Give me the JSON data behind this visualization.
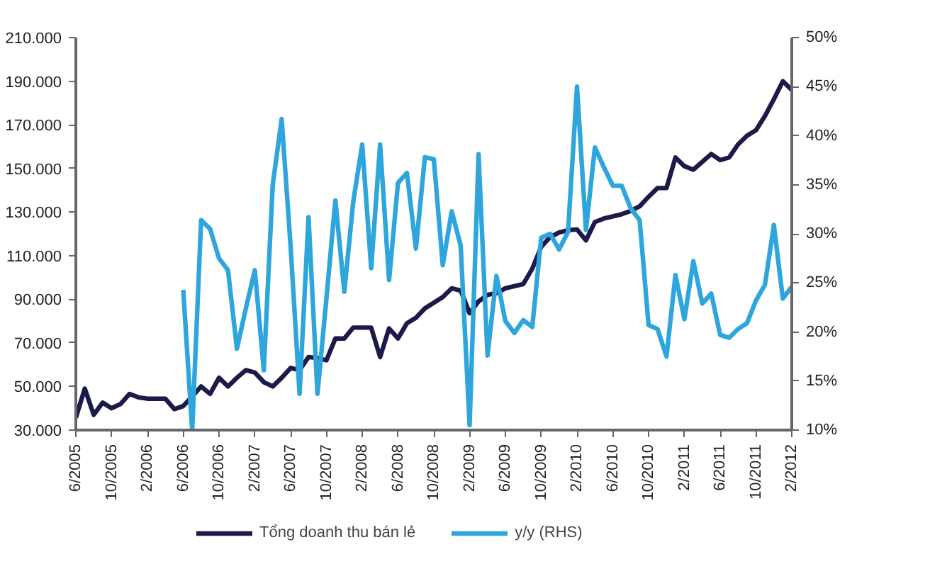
{
  "chart_data": {
    "type": "line",
    "categories": [
      "6/2005",
      null,
      null,
      null,
      "10/2005",
      null,
      null,
      null,
      "2/2006",
      null,
      null,
      null,
      "6/2006",
      null,
      null,
      null,
      "10/2006",
      null,
      null,
      null,
      "2/2007",
      null,
      null,
      null,
      "6/2007",
      null,
      null,
      null,
      "10/2007",
      null,
      null,
      null,
      "2/2008",
      null,
      null,
      null,
      "6/2008",
      null,
      null,
      null,
      "10/2008",
      null,
      null,
      null,
      "2/2009",
      null,
      null,
      null,
      "6/2009",
      null,
      null,
      null,
      "10/2009",
      null,
      null,
      null,
      "2/2010",
      null,
      null,
      null,
      "6/2010",
      null,
      null,
      null,
      "10/2010",
      null,
      null,
      null,
      "2/2011",
      null,
      null,
      null,
      "6/2011",
      null,
      null,
      null,
      "10/2011",
      null,
      null,
      null,
      "2/2012"
    ],
    "series": [
      {
        "name": "Tổng doanh thu bán lẻ",
        "color": "#1b1a4a",
        "values": [
          35700,
          49000,
          37000,
          42600,
          40000,
          42000,
          46600,
          45000,
          44400,
          44400,
          44400,
          39600,
          41000,
          45500,
          50000,
          46600,
          54000,
          50000,
          54000,
          57500,
          56400,
          52000,
          50000,
          54000,
          58500,
          57500,
          63500,
          63000,
          62000,
          72000,
          72000,
          77000,
          77000,
          77000,
          63500,
          76600,
          72000,
          79000,
          81500,
          85800,
          88400,
          91000,
          95000,
          94000,
          83600,
          89000,
          92000,
          92800,
          95000,
          96000,
          97000,
          104000,
          114000,
          118500,
          120600,
          121700,
          122000,
          117000,
          125400,
          127000,
          128000,
          129000,
          130500,
          132600,
          137000,
          141000,
          141000,
          155000,
          151000,
          149400,
          153000,
          156600,
          153800,
          155000,
          161000,
          165000,
          167500,
          174000,
          181700,
          190000,
          186000
        ]
      },
      {
        "name": "y/y (RHS)",
        "color": "#2ea6dc",
        "axis": "y2",
        "values": [
          null,
          null,
          null,
          null,
          null,
          null,
          null,
          null,
          null,
          null,
          null,
          null,
          24.3,
          10,
          31.4,
          30.5,
          27.5,
          26.3,
          18.3,
          22.4,
          26.3,
          16.1,
          35,
          41.7,
          28.7,
          13.7,
          31.7,
          13.7,
          23.4,
          33.4,
          24.1,
          33.3,
          39.1,
          26.5,
          39.1,
          25.3,
          35.2,
          36.2,
          28.5,
          37.8,
          37.6,
          26.8,
          32.3,
          28.8,
          10.5,
          38.1,
          17.6,
          25.7,
          21.1,
          19.9,
          21.2,
          20.5,
          29.6,
          30,
          28.4,
          30.2,
          45,
          30.4,
          38.8,
          36.8,
          34.9,
          34.9,
          32.6,
          31.4,
          20.7,
          20.3,
          17.5,
          25.8,
          21.3,
          27.2,
          22.9,
          23.9,
          19.7,
          19.4,
          20.3,
          20.9,
          23.2,
          24.8,
          30.9,
          23.4,
          24.6
        ]
      }
    ],
    "ylim": [
      30000,
      210000
    ],
    "yticks": [
      {
        "value": 30000,
        "label": "30.000"
      },
      {
        "value": 50000,
        "label": "50.000"
      },
      {
        "value": 70000,
        "label": "70.000"
      },
      {
        "value": 90000,
        "label": "90.000"
      },
      {
        "value": 110000,
        "label": "110.000"
      },
      {
        "value": 130000,
        "label": "130.000"
      },
      {
        "value": 150000,
        "label": "150.000"
      },
      {
        "value": 170000,
        "label": "170.000"
      },
      {
        "value": 190000,
        "label": "190.000"
      },
      {
        "value": 210000,
        "label": "210.000"
      }
    ],
    "y2lim": [
      10,
      50
    ],
    "y2ticks": [
      {
        "value": 10,
        "label": "10%"
      },
      {
        "value": 15,
        "label": "15%"
      },
      {
        "value": 20,
        "label": "20%"
      },
      {
        "value": 25,
        "label": "25%"
      },
      {
        "value": 30,
        "label": "30%"
      },
      {
        "value": 35,
        "label": "35%"
      },
      {
        "value": 40,
        "label": "40%"
      },
      {
        "value": 45,
        "label": "45%"
      },
      {
        "value": 50,
        "label": "50%"
      }
    ],
    "legend": "bottom"
  }
}
